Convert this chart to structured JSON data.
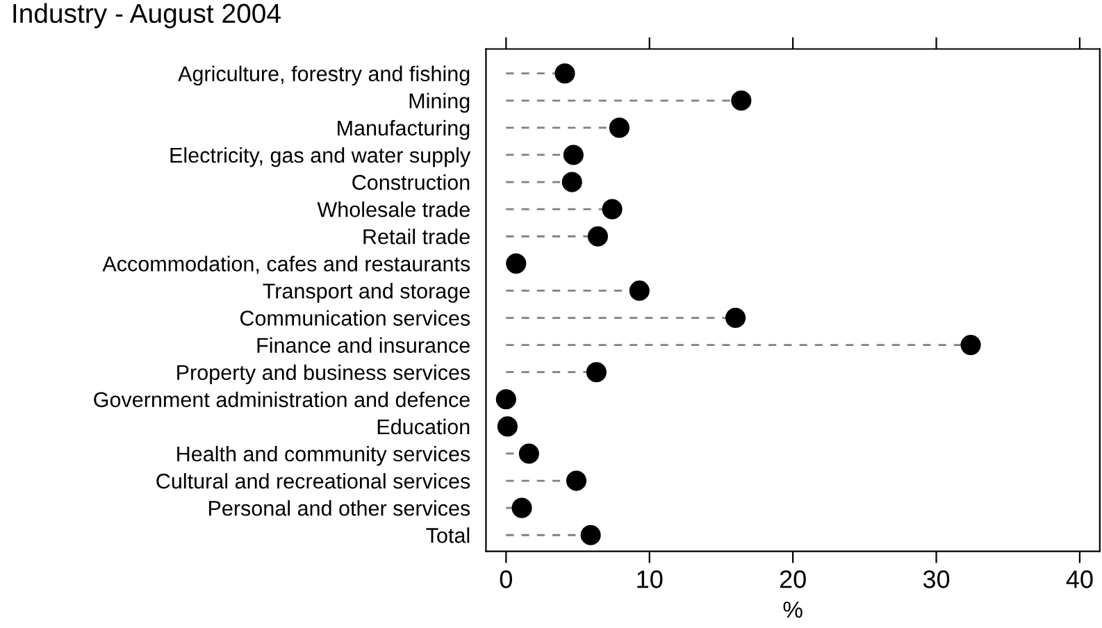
{
  "chart_data": {
    "type": "lollipop",
    "orientation": "horizontal",
    "title": "Industry - August 2004",
    "xlabel": "%",
    "categories": [
      "Agriculture, forestry and fishing",
      "Mining",
      "Manufacturing",
      "Electricity, gas and water supply",
      "Construction",
      "Wholesale trade",
      "Retail trade",
      "Accommodation, cafes and restaurants",
      "Transport and storage",
      "Communication services",
      "Finance and insurance",
      "Property and business services",
      "Government administration and defence",
      "Education",
      "Health and community services",
      "Cultural and recreational services",
      "Personal and other services",
      "Total"
    ],
    "series": [
      {
        "color": "#000000",
        "values": [
          4.1,
          16.4,
          7.9,
          4.7,
          4.6,
          7.4,
          6.4,
          0.7,
          9.3,
          16.0,
          32.4,
          6.3,
          0.0,
          0.1,
          1.6,
          4.9,
          1.1,
          5.9
        ]
      }
    ],
    "xlim": [
      -1.4,
      41.4
    ],
    "xticks": [
      0,
      10,
      20,
      30,
      40
    ],
    "legend": false,
    "marker": "circle",
    "line_style": "dashed"
  }
}
